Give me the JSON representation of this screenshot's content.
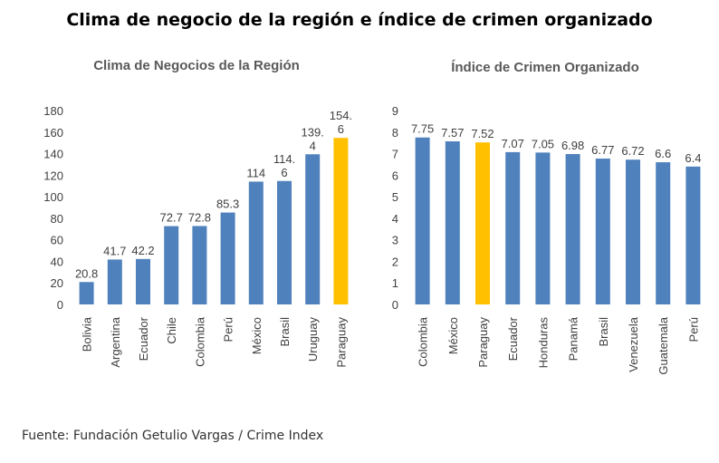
{
  "page": {
    "title": "Clima de negocio de la región e índice de crimen organizado",
    "source": "Fuente: Fundación Getulio Vargas / Crime Index"
  },
  "colors": {
    "bar": "#4F81BD",
    "highlight": "#FFC000"
  },
  "chart_data": [
    {
      "type": "bar",
      "title": "Clima de Negocios  de la Región",
      "categories": [
        "Bolivia",
        "Argentina",
        "Ecuador",
        "Chile",
        "Colombia",
        "Perú",
        "México",
        "Brasil",
        "Uruguay",
        "Paraguay"
      ],
      "values": [
        20.8,
        41.7,
        42.2,
        72.7,
        72.8,
        85.3,
        114,
        114.6,
        139.4,
        154.6
      ],
      "labels": [
        [
          "20.8"
        ],
        [
          "41.7"
        ],
        [
          "42.2"
        ],
        [
          "72.7"
        ],
        [
          "72.8"
        ],
        [
          "85.3"
        ],
        [
          "114"
        ],
        [
          "114.",
          "6"
        ],
        [
          "139.",
          "4"
        ],
        [
          "154.",
          "6"
        ]
      ],
      "highlight_category": "Paraguay",
      "ylim": [
        0,
        180
      ],
      "yticks": [
        0,
        20,
        40,
        60,
        80,
        100,
        120,
        140,
        160,
        180
      ],
      "xlabel": "",
      "ylabel": "",
      "grid": false
    },
    {
      "type": "bar",
      "title": "Índice de Crimen Organizado",
      "categories": [
        "Colombia",
        "México",
        "Paraguay",
        "Ecuador",
        "Honduras",
        "Panamá",
        "Brasil",
        "Venezuela",
        "Guatemala",
        "Perú"
      ],
      "values": [
        7.75,
        7.57,
        7.52,
        7.07,
        7.05,
        6.98,
        6.77,
        6.72,
        6.6,
        6.4
      ],
      "labels": [
        [
          "7.75"
        ],
        [
          "7.57"
        ],
        [
          "7.52"
        ],
        [
          "7.07"
        ],
        [
          "7.05"
        ],
        [
          "6.98"
        ],
        [
          "6.77"
        ],
        [
          "6.72"
        ],
        [
          "6.6"
        ],
        [
          "6.4"
        ]
      ],
      "highlight_category": "Paraguay",
      "ylim": [
        0,
        9
      ],
      "yticks": [
        0,
        1,
        2,
        3,
        4,
        5,
        6,
        7,
        8,
        9
      ],
      "xlabel": "",
      "ylabel": "",
      "grid": false
    }
  ]
}
